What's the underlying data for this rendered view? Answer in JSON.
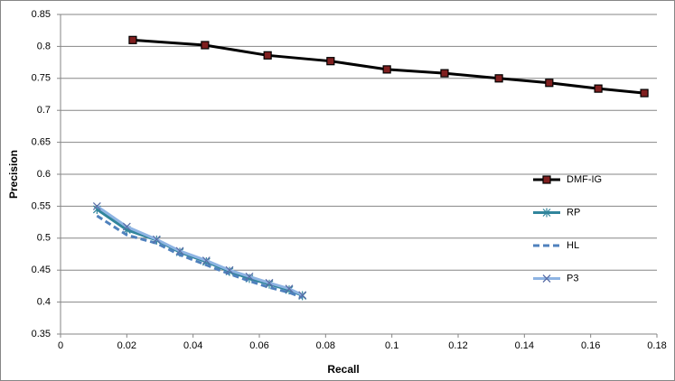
{
  "chart_data": {
    "type": "line",
    "x_label": "Recall",
    "y_label": "Precision",
    "xlim": [
      0,
      0.18
    ],
    "xticks": [
      0,
      0.02,
      0.04,
      0.06,
      0.08,
      0.1,
      0.12,
      0.14,
      0.16,
      0.18
    ],
    "ylim": [
      0.35,
      0.85
    ],
    "yticks": [
      0.35,
      0.4,
      0.45,
      0.5,
      0.55,
      0.6,
      0.65,
      0.7,
      0.75,
      0.8,
      0.85
    ],
    "grid": true,
    "legend": "right",
    "series": [
      {
        "name": "DMF-IG",
        "color": "#000000",
        "marker": "square",
        "marker_color": "#7f1f1f",
        "x": [
          0.0218,
          0.0436,
          0.0625,
          0.0815,
          0.0985,
          0.1159,
          0.1323,
          0.1475,
          0.1623,
          0.1762
        ],
        "values": [
          0.81,
          0.802,
          0.786,
          0.777,
          0.764,
          0.758,
          0.75,
          0.743,
          0.734,
          0.727
        ]
      },
      {
        "name": "RP",
        "color": "#31859c",
        "marker": "asterisk",
        "x": [
          0.011,
          0.02,
          0.029,
          0.036,
          0.044,
          0.051,
          0.057,
          0.063,
          0.069,
          0.073
        ],
        "values": [
          0.545,
          0.513,
          0.497,
          0.478,
          0.463,
          0.448,
          0.437,
          0.428,
          0.419,
          0.41
        ]
      },
      {
        "name": "HL",
        "color": "#4f81bd",
        "marker": "none",
        "dash": true,
        "x": [
          0.011,
          0.02,
          0.029,
          0.036,
          0.044,
          0.051,
          0.057,
          0.063,
          0.069,
          0.073
        ],
        "values": [
          0.535,
          0.505,
          0.492,
          0.474,
          0.458,
          0.444,
          0.433,
          0.423,
          0.415,
          0.407
        ]
      },
      {
        "name": "P3",
        "color": "#8eb4e3",
        "marker": "x",
        "marker_color": "#5a6fa8",
        "x": [
          0.011,
          0.02,
          0.029,
          0.036,
          0.044,
          0.051,
          0.057,
          0.063,
          0.069,
          0.073
        ],
        "values": [
          0.55,
          0.518,
          0.498,
          0.48,
          0.465,
          0.45,
          0.44,
          0.43,
          0.421,
          0.411
        ]
      }
    ]
  }
}
